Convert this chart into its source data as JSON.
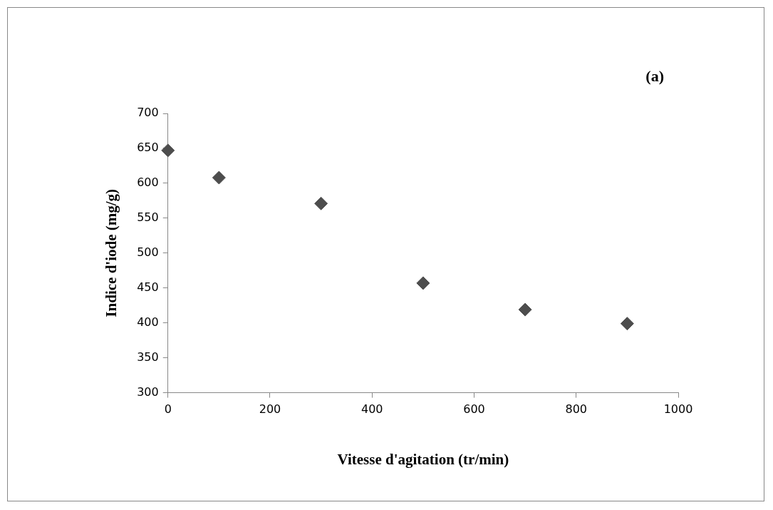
{
  "chart_data": {
    "type": "scatter",
    "xlabel": "Vitesse d'agitation (tr/min)",
    "ylabel": "Indice d'iode (mg/g)",
    "annotations": [
      "(a)"
    ],
    "x": [
      0,
      100,
      300,
      500,
      700,
      900
    ],
    "series": [
      {
        "color": "#4d4d4d",
        "values": [
          647,
          608,
          571,
          457,
          419,
          399
        ]
      }
    ],
    "xlim": [
      0,
      1000
    ],
    "xticks": [
      0,
      200,
      400,
      600,
      800,
      1000
    ],
    "ylim": [
      300,
      700
    ],
    "yticks": [
      300,
      350,
      400,
      450,
      500,
      550,
      600,
      650,
      700
    ],
    "grid": false,
    "legend": false,
    "marker": "diamond"
  }
}
